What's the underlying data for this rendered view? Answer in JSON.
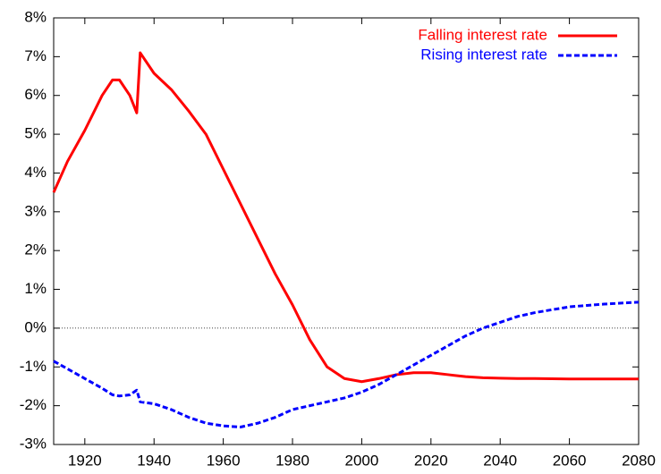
{
  "chart_data": {
    "type": "line",
    "x": [
      1911,
      1915,
      1920,
      1925,
      1928,
      1930,
      1933,
      1935,
      1936,
      1940,
      1945,
      1950,
      1955,
      1960,
      1965,
      1970,
      1975,
      1980,
      1985,
      1990,
      1995,
      2000,
      2005,
      2010,
      2015,
      2020,
      2025,
      2030,
      2035,
      2040,
      2045,
      2050,
      2060,
      2070,
      2080
    ],
    "series": [
      {
        "name": "Falling interest rate",
        "color": "#ff0000",
        "dash": false,
        "values": [
          3.5,
          4.3,
          5.1,
          6.0,
          6.4,
          6.4,
          6.0,
          5.55,
          7.1,
          6.57,
          6.15,
          5.6,
          5.0,
          4.1,
          3.2,
          2.3,
          1.4,
          0.6,
          -0.3,
          -1.0,
          -1.3,
          -1.38,
          -1.3,
          -1.2,
          -1.15,
          -1.15,
          -1.2,
          -1.25,
          -1.28,
          -1.29,
          -1.3,
          -1.3,
          -1.31,
          -1.31,
          -1.31
        ]
      },
      {
        "name": "Rising interest rate",
        "color": "#0000ff",
        "dash": true,
        "values": [
          -0.85,
          -1.05,
          -1.3,
          -1.55,
          -1.72,
          -1.75,
          -1.72,
          -1.6,
          -1.9,
          -1.95,
          -2.1,
          -2.3,
          -2.45,
          -2.52,
          -2.55,
          -2.45,
          -2.3,
          -2.1,
          -2.0,
          -1.9,
          -1.8,
          -1.65,
          -1.45,
          -1.2,
          -0.95,
          -0.7,
          -0.45,
          -0.2,
          0.0,
          0.15,
          0.3,
          0.4,
          0.55,
          0.62,
          0.67
        ]
      }
    ],
    "xlim": [
      1911,
      2080
    ],
    "xticks": [
      1920,
      1940,
      1960,
      1980,
      2000,
      2020,
      2040,
      2060,
      2080
    ],
    "ylim": [
      -3,
      8
    ],
    "yticks": [
      {
        "value": -3,
        "label": "-3%"
      },
      {
        "value": -2,
        "label": "-2%"
      },
      {
        "value": -1,
        "label": "-1%"
      },
      {
        "value": 0,
        "label": "0%"
      },
      {
        "value": 1,
        "label": "1%"
      },
      {
        "value": 2,
        "label": "2%"
      },
      {
        "value": 3,
        "label": "3%"
      },
      {
        "value": 4,
        "label": "4%"
      },
      {
        "value": 5,
        "label": "5%"
      },
      {
        "value": 6,
        "label": "6%"
      },
      {
        "value": 7,
        "label": "7%"
      },
      {
        "value": 8,
        "label": "8%"
      }
    ],
    "zero_line": true,
    "legend": "top-right"
  }
}
